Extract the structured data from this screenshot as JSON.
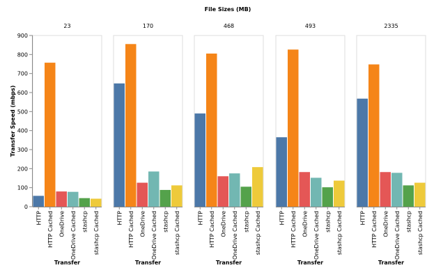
{
  "chart_data": {
    "type": "bar",
    "title": "File Sizes (MB)",
    "ylabel": "Transfer Speed (mbps)",
    "xlabel": "Transfer",
    "ylim": [
      0,
      900
    ],
    "yticks": [
      0,
      100,
      200,
      300,
      400,
      500,
      600,
      700,
      800,
      900
    ],
    "grid": false,
    "categories": [
      "HTTP",
      "HTTP Cached",
      "OneDrive",
      "OneDrive Cached",
      "stashcp",
      "stashcp Cached"
    ],
    "colors": {
      "HTTP": "#4c78a8",
      "HTTP Cached": "#f58518",
      "OneDrive": "#e45756",
      "OneDrive Cached": "#72b7b2",
      "stashcp": "#54a24b",
      "stashcp Cached": "#eeca3b"
    },
    "facets": [
      {
        "label": "23",
        "values": [
          57,
          757,
          80,
          78,
          45,
          42
        ]
      },
      {
        "label": "170",
        "values": [
          648,
          855,
          126,
          185,
          88,
          112
        ]
      },
      {
        "label": "468",
        "values": [
          490,
          805,
          160,
          175,
          105,
          208
        ]
      },
      {
        "label": "493",
        "values": [
          365,
          826,
          182,
          152,
          102,
          137
        ]
      },
      {
        "label": "2335",
        "values": [
          568,
          748,
          182,
          178,
          112,
          126
        ]
      }
    ]
  }
}
